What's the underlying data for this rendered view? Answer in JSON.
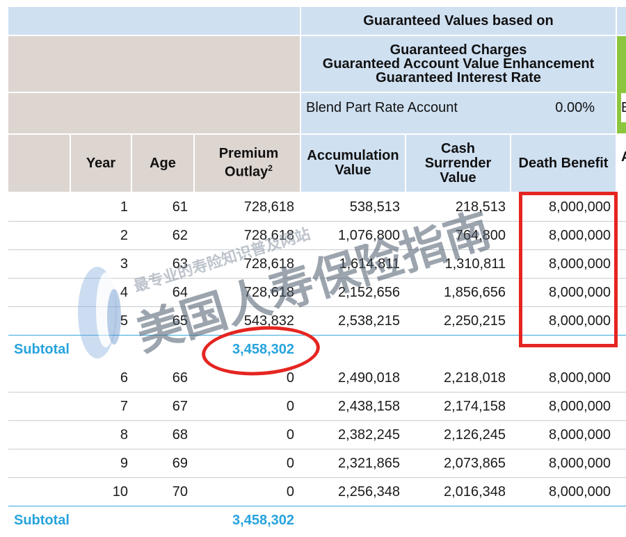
{
  "header": {
    "guaranteed_title": "Guaranteed Values based on",
    "guaranteed_lines": [
      "Guaranteed Charges",
      "Guaranteed Account Value Enhancement",
      "Guaranteed Interest Rate"
    ],
    "blend_label": "Blend Part Rate Account",
    "blend_rate": "0.00%",
    "edge_letter_1": "E",
    "edge_letter_2": "A"
  },
  "columns": {
    "year": "Year",
    "age": "Age",
    "premium_line1": "Premium",
    "premium_line2": "Outlay",
    "premium_sup": "2",
    "accum_line1": "Accumulation",
    "accum_line2": "Value",
    "cash_line1": "Cash",
    "cash_line2": "Surrender",
    "cash_line3": "Value",
    "death": "Death Benefit"
  },
  "rows_a": [
    {
      "year": "1",
      "age": "61",
      "premium": "728,618",
      "accum": "538,513",
      "cash": "218,513",
      "death": "8,000,000"
    },
    {
      "year": "2",
      "age": "62",
      "premium": "728,618",
      "accum": "1,076,800",
      "cash": "764,800",
      "death": "8,000,000"
    },
    {
      "year": "3",
      "age": "63",
      "premium": "728,618",
      "accum": "1,614,811",
      "cash": "1,310,811",
      "death": "8,000,000"
    },
    {
      "year": "4",
      "age": "64",
      "premium": "728,618",
      "accum": "2,152,656",
      "cash": "1,856,656",
      "death": "8,000,000"
    },
    {
      "year": "5",
      "age": "65",
      "premium": "543,832",
      "accum": "2,538,215",
      "cash": "2,250,215",
      "death": "8,000,000"
    }
  ],
  "subtotal_1": {
    "label": "Subtotal",
    "premium": "3,458,302"
  },
  "rows_b": [
    {
      "year": "6",
      "age": "66",
      "premium": "0",
      "accum": "2,490,018",
      "cash": "2,218,018",
      "death": "8,000,000"
    },
    {
      "year": "7",
      "age": "67",
      "premium": "0",
      "accum": "2,438,158",
      "cash": "2,174,158",
      "death": "8,000,000"
    },
    {
      "year": "8",
      "age": "68",
      "premium": "0",
      "accum": "2,382,245",
      "cash": "2,126,245",
      "death": "8,000,000"
    },
    {
      "year": "9",
      "age": "69",
      "premium": "0",
      "accum": "2,321,865",
      "cash": "2,073,865",
      "death": "8,000,000"
    },
    {
      "year": "10",
      "age": "70",
      "premium": "0",
      "accum": "2,256,348",
      "cash": "2,016,348",
      "death": "8,000,000"
    }
  ],
  "subtotal_2": {
    "label": "Subtotal",
    "premium": "3,458,302"
  },
  "watermark": {
    "main_text": "美国人寿保险指南",
    "small_text": "最专业的寿险知识普及网站"
  },
  "colors": {
    "header_blue": "#cfe0f1",
    "header_grey": "#ddd5d0",
    "accent_green": "#8cc63f",
    "subtotal_blue": "#27a3dc",
    "annotation_red": "#e52521"
  }
}
